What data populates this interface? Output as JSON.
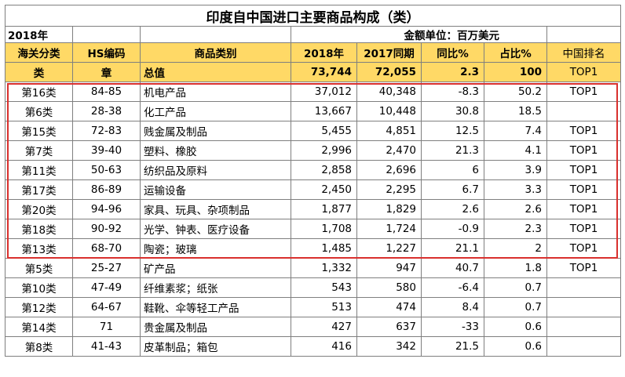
{
  "title": "印度自中国进口主要商品构成（类）",
  "year_label": "2018年",
  "unit_label": "金额单位：百万美元",
  "header_row1": [
    "海关分类",
    "HS编码",
    "商品类别",
    "2018年",
    "2017同期",
    "同比%",
    "占比%",
    "中国排名"
  ],
  "header_row2": [
    "类",
    "章",
    "总值",
    "73,744",
    "72,055",
    "2.3",
    "100",
    "TOP1"
  ],
  "colors": {
    "header_bg": "#FFD966",
    "highlight_border": "#D9302E",
    "grid": "#7f7f7f"
  },
  "rows": [
    [
      "第16类",
      "84-85",
      "机电产品",
      "37,012",
      "40,348",
      "-8.3",
      "50.2",
      "TOP1"
    ],
    [
      "第6类",
      "28-38",
      "化工产品",
      "13,667",
      "10,448",
      "30.8",
      "18.5",
      ""
    ],
    [
      "第15类",
      "72-83",
      "贱金属及制品",
      "5,455",
      "4,851",
      "12.5",
      "7.4",
      "TOP1"
    ],
    [
      "第7类",
      "39-40",
      "塑料、橡胶",
      "2,996",
      "2,470",
      "21.3",
      "4.1",
      "TOP1"
    ],
    [
      "第11类",
      "50-63",
      "纺织品及原料",
      "2,858",
      "2,696",
      "6",
      "3.9",
      "TOP1"
    ],
    [
      "第17类",
      "86-89",
      "运输设备",
      "2,450",
      "2,295",
      "6.7",
      "3.3",
      "TOP1"
    ],
    [
      "第20类",
      "94-96",
      "家具、玩具、杂项制品",
      "1,877",
      "1,829",
      "2.6",
      "2.6",
      "TOP1"
    ],
    [
      "第18类",
      "90-92",
      "光学、钟表、医疗设备",
      "1,708",
      "1,724",
      "-0.9",
      "2.3",
      "TOP1"
    ],
    [
      "第13类",
      "68-70",
      "陶瓷；玻璃",
      "1,485",
      "1,227",
      "21.1",
      "2",
      "TOP1"
    ],
    [
      "第5类",
      "25-27",
      "矿产品",
      "1,332",
      "947",
      "40.7",
      "1.8",
      "TOP1"
    ],
    [
      "第10类",
      "47-49",
      "纤维素浆；纸张",
      "543",
      "580",
      "-6.4",
      "0.7",
      ""
    ],
    [
      "第12类",
      "64-67",
      "鞋靴、伞等轻工产品",
      "513",
      "474",
      "8.4",
      "0.7",
      ""
    ],
    [
      "第14类",
      "71",
      "贵金属及制品",
      "427",
      "637",
      "-33",
      "0.6",
      ""
    ],
    [
      "第8类",
      "41-43",
      "皮革制品；箱包",
      "416",
      "342",
      "21.5",
      "0.6",
      ""
    ]
  ]
}
